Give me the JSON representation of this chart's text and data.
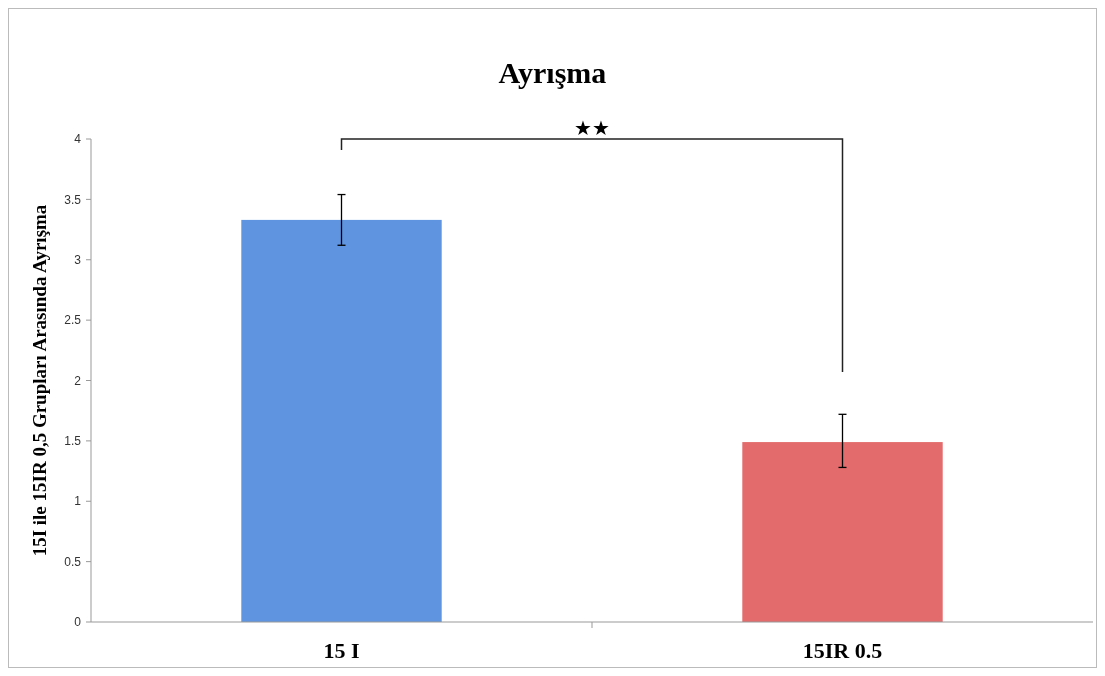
{
  "chart_data": {
    "type": "bar",
    "title": "Ayrışma",
    "ylabel": "15I ile 15IR 0,5 Grupları Arasında Ayrışma",
    "categories": [
      "15 I",
      "15IR 0.5"
    ],
    "values": [
      3.33,
      1.49
    ],
    "colors": [
      "#5f95e0",
      "#e36b6b"
    ],
    "errors": [
      [
        3.12,
        3.54
      ],
      [
        1.28,
        1.72
      ]
    ],
    "ylim": [
      0,
      4
    ],
    "yticks": [
      0,
      0.5,
      1,
      1.5,
      2,
      2.5,
      3,
      3.5,
      4
    ],
    "grid": false,
    "annotations": [
      "★★"
    ]
  }
}
